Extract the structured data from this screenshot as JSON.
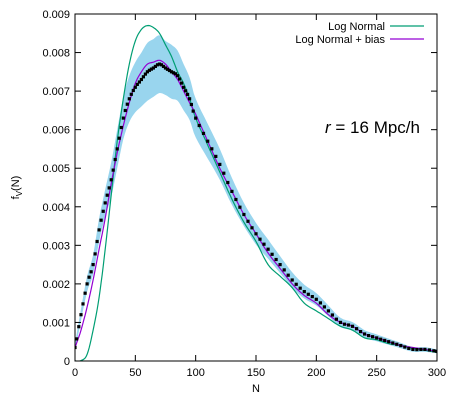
{
  "chart_data": {
    "type": "line",
    "title": "",
    "xlabel": "N",
    "ylabel": "f",
    "ylabel_sub": "V",
    "ylabel_suffix": "(N)",
    "xlim": [
      0,
      300
    ],
    "ylim": [
      0,
      0.009
    ],
    "xticks": [
      0,
      50,
      100,
      150,
      200,
      250,
      300
    ],
    "xtick_labels": [
      "0",
      "50",
      "100",
      "150",
      "200",
      "250",
      "300"
    ],
    "yticks": [
      0,
      0.001,
      0.002,
      0.003,
      0.004,
      0.005,
      0.006,
      0.007,
      0.008,
      0.009
    ],
    "ytick_labels": [
      "0",
      "0.001",
      "0.002",
      "0.003",
      "0.004",
      "0.005",
      "0.006",
      "0.007",
      "0.008",
      "0.009"
    ],
    "grid": false,
    "legend_position": "top-right",
    "annotation": {
      "italic_part": "r",
      "rest": " = 16 Mpc/h"
    },
    "series": [
      {
        "name": "Log Normal",
        "color": "#009e73",
        "style": "line",
        "x": [
          0,
          5,
          10,
          15,
          20,
          25,
          30,
          35,
          40,
          45,
          50,
          55,
          60,
          65,
          70,
          75,
          80,
          85,
          90,
          95,
          100,
          110,
          120,
          130,
          140,
          150,
          160,
          170,
          180,
          190,
          200,
          210,
          220,
          230,
          240,
          250,
          260,
          270,
          280,
          290,
          300
        ],
        "y": [
          0,
          1e-05,
          0.00017,
          0.0008,
          0.00165,
          0.0029,
          0.0043,
          0.0057,
          0.0068,
          0.0077,
          0.0083,
          0.0086,
          0.0087,
          0.00865,
          0.0085,
          0.0082,
          0.0079,
          0.0075,
          0.0072,
          0.0068,
          0.0063,
          0.0056,
          0.0049,
          0.0042,
          0.0036,
          0.0031,
          0.0025,
          0.0022,
          0.0019,
          0.0015,
          0.0013,
          0.0011,
          0.0009,
          0.0008,
          0.0006,
          0.00055,
          0.00045,
          0.0004,
          0.00033,
          0.00028,
          0.00022
        ]
      },
      {
        "name": "Log Normal + bias",
        "color": "#9400d3",
        "style": "line",
        "x": [
          0,
          5,
          10,
          15,
          20,
          25,
          30,
          35,
          40,
          45,
          50,
          55,
          60,
          65,
          70,
          75,
          80,
          85,
          90,
          95,
          100,
          110,
          120,
          130,
          140,
          150,
          160,
          170,
          180,
          190,
          200,
          210,
          220,
          230,
          240,
          250,
          260,
          270,
          280,
          290,
          300
        ],
        "y": [
          0.00035,
          0.0008,
          0.0014,
          0.0021,
          0.0029,
          0.0037,
          0.0046,
          0.0054,
          0.0061,
          0.0067,
          0.0072,
          0.0075,
          0.0077,
          0.00775,
          0.0078,
          0.0077,
          0.0075,
          0.0073,
          0.007,
          0.0067,
          0.0064,
          0.0057,
          0.005,
          0.0044,
          0.0038,
          0.0033,
          0.0028,
          0.0024,
          0.002,
          0.0017,
          0.0015,
          0.0012,
          0.001,
          0.0009,
          0.0007,
          0.0006,
          0.0005,
          0.0004,
          0.00035,
          0.0003,
          0.00025
        ]
      },
      {
        "name": "",
        "role": "measurement",
        "color": "#000000",
        "band_color": "#87ceeb",
        "style": "points-with-band",
        "x": [
          0,
          5,
          10,
          15,
          20,
          25,
          30,
          35,
          40,
          45,
          50,
          55,
          60,
          65,
          70,
          75,
          80,
          85,
          90,
          95,
          100,
          110,
          120,
          130,
          140,
          150,
          160,
          170,
          180,
          190,
          200,
          210,
          220,
          230,
          240,
          250,
          260,
          270,
          280,
          290,
          300
        ],
        "y": [
          0.00035,
          0.0012,
          0.002,
          0.0025,
          0.0034,
          0.0041,
          0.0047,
          0.0055,
          0.0063,
          0.0068,
          0.0071,
          0.0073,
          0.0075,
          0.0076,
          0.0077,
          0.0076,
          0.0075,
          0.0074,
          0.0071,
          0.0068,
          0.0063,
          0.0057,
          0.0051,
          0.0044,
          0.0038,
          0.0033,
          0.0029,
          0.0025,
          0.0021,
          0.0018,
          0.0016,
          0.0013,
          0.001,
          0.0009,
          0.0007,
          0.0006,
          0.0005,
          0.0004,
          0.0003,
          0.0003,
          0.00025
        ],
        "err": [
          0.0001,
          0.00015,
          0.0002,
          0.00025,
          0.0003,
          0.00035,
          0.00045,
          0.0005,
          0.00055,
          0.0006,
          0.00065,
          0.0007,
          0.00075,
          0.00075,
          0.00075,
          0.0007,
          0.0007,
          0.00065,
          0.0006,
          0.00055,
          0.0005,
          0.00045,
          0.0004,
          0.00035,
          0.0003,
          0.00028,
          0.00025,
          0.00022,
          0.0002,
          0.00018,
          0.00016,
          0.00014,
          0.00012,
          0.00011,
          0.0001,
          9e-05,
          8e-05,
          7e-05,
          6e-05,
          6e-05,
          5e-05
        ]
      }
    ]
  }
}
